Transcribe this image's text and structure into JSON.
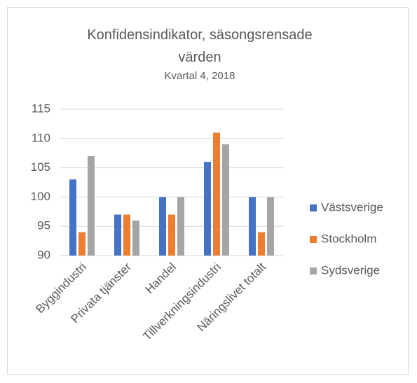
{
  "chart_data": {
    "type": "bar",
    "title": "Konfidensindikator, säsongsrensade värden",
    "subtitle": "Kvartal 4, 2018",
    "categories": [
      "Byggindustri",
      "Privata tjänster",
      "Handel",
      "Tillverkningsindustri",
      "Näringslivet totalt"
    ],
    "series": [
      {
        "name": "Västsverige",
        "color": "#4472c4",
        "values": [
          103,
          97,
          100,
          106,
          100
        ]
      },
      {
        "name": "Stockholm",
        "color": "#ed7d31",
        "values": [
          94,
          97,
          97,
          111,
          94
        ]
      },
      {
        "name": "Sydsverige",
        "color": "#a5a5a5",
        "values": [
          107,
          96,
          100,
          109,
          100
        ]
      }
    ],
    "ylim": [
      90,
      115
    ],
    "yticks": [
      90,
      95,
      100,
      105,
      110,
      115
    ],
    "grid": true,
    "legend": "right"
  }
}
